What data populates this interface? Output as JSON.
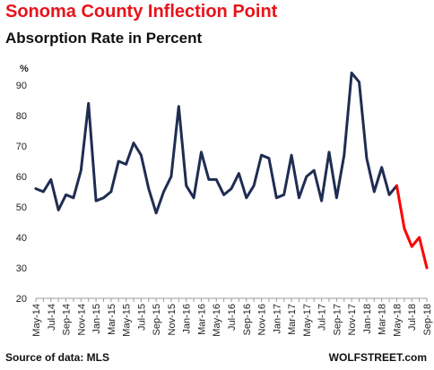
{
  "chart_data": {
    "type": "line",
    "title": "Sonoma County Inflection Point",
    "subtitle": "Absorption  Rate in Percent",
    "ylabel": "%",
    "xlabel": "",
    "ylim": [
      20,
      95
    ],
    "yticks": [
      20,
      30,
      40,
      50,
      60,
      70,
      80,
      90
    ],
    "grid": false,
    "legend": "none",
    "x": [
      "May-14",
      "Jun-14",
      "Jul-14",
      "Aug-14",
      "Sep-14",
      "Oct-14",
      "Nov-14",
      "Dec-14",
      "Jan-15",
      "Feb-15",
      "Mar-15",
      "Apr-15",
      "May-15",
      "Jun-15",
      "Jul-15",
      "Aug-15",
      "Sep-15",
      "Oct-15",
      "Nov-15",
      "Dec-15",
      "Jan-16",
      "Feb-16",
      "Mar-16",
      "Apr-16",
      "May-16",
      "Jun-16",
      "Jul-16",
      "Aug-16",
      "Sep-16",
      "Oct-16",
      "Nov-16",
      "Dec-16",
      "Jan-17",
      "Feb-17",
      "Mar-17",
      "Apr-17",
      "May-17",
      "Jun-17",
      "Jul-17",
      "Aug-17",
      "Sep-17",
      "Oct-17",
      "Nov-17",
      "Dec-17",
      "Jan-18",
      "Feb-18",
      "Mar-18",
      "Apr-18",
      "May-18",
      "Jun-18",
      "Jul-18",
      "Aug-18",
      "Sep-18"
    ],
    "tick_labels": [
      "May-14",
      "Jul-14",
      "Sep-14",
      "Nov-14",
      "Jan-15",
      "Mar-15",
      "May-15",
      "Jul-15",
      "Sep-15",
      "Nov-15",
      "Jan-16",
      "Mar-16",
      "May-16",
      "Jul-16",
      "Sep-16",
      "Nov-16",
      "Jan-17",
      "Mar-17",
      "May-17",
      "Jul-17",
      "Sep-17",
      "Nov-17",
      "Jan-18",
      "Mar-18",
      "May-18",
      "Jul-18",
      "Sep-18"
    ],
    "series": [
      {
        "color": "#1f2d52",
        "values": [
          56,
          55,
          59,
          49,
          54,
          53,
          62,
          84,
          52,
          53,
          55,
          65,
          64,
          71,
          67,
          56,
          48,
          55,
          60,
          83,
          57,
          53,
          68,
          59,
          59,
          54,
          56,
          61,
          53,
          57,
          67,
          66,
          53,
          54,
          67,
          53,
          60,
          62,
          52,
          68,
          53,
          67,
          94,
          91,
          66,
          55,
          63,
          54,
          57,
          null,
          null,
          null,
          null
        ]
      },
      {
        "color": "#ff0000",
        "values": [
          null,
          null,
          null,
          null,
          null,
          null,
          null,
          null,
          null,
          null,
          null,
          null,
          null,
          null,
          null,
          null,
          null,
          null,
          null,
          null,
          null,
          null,
          null,
          null,
          null,
          null,
          null,
          null,
          null,
          null,
          null,
          null,
          null,
          null,
          null,
          null,
          null,
          null,
          null,
          null,
          null,
          null,
          null,
          null,
          null,
          null,
          null,
          null,
          57,
          43,
          37,
          40,
          30
        ]
      }
    ]
  },
  "footer": {
    "source": "Source of data: MLS",
    "brand": "WOLFSTREET.com"
  }
}
